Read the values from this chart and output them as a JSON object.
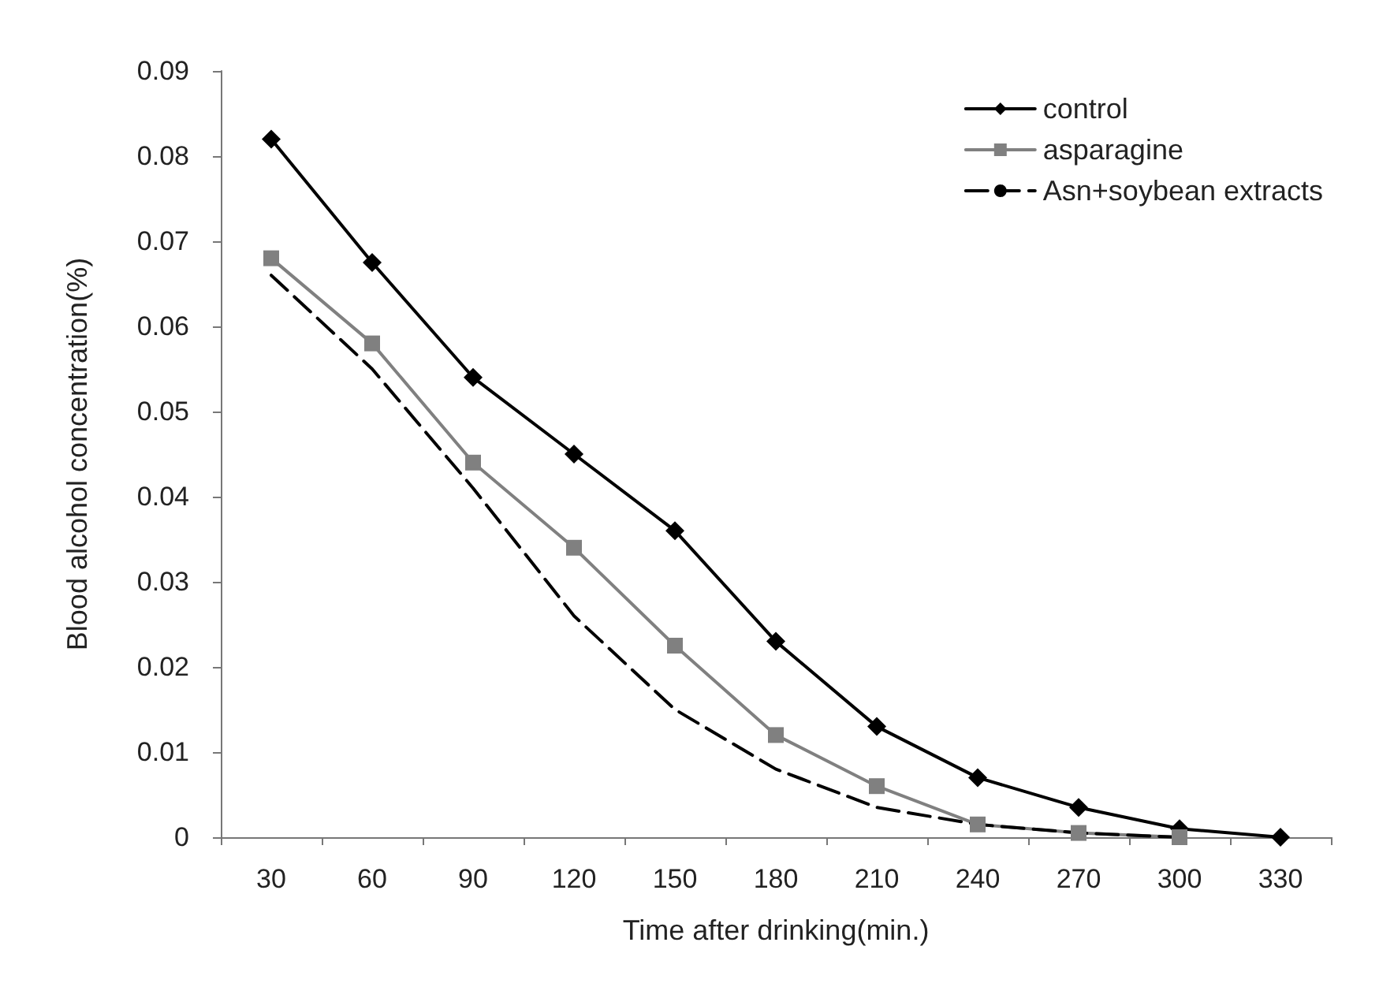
{
  "chart_data": {
    "type": "line",
    "xlabel": "Time after drinking(min.)",
    "ylabel": "Blood alcohol concentration(%)",
    "categories": [
      "30",
      "60",
      "90",
      "120",
      "150",
      "180",
      "210",
      "240",
      "270",
      "300",
      "330"
    ],
    "ylim": [
      0,
      0.09
    ],
    "yticks": [
      0,
      0.01,
      0.02,
      0.03,
      0.04,
      0.05,
      0.06,
      0.07,
      0.08,
      0.09
    ],
    "grid": false,
    "legend": "top right",
    "series": [
      {
        "name": "control",
        "color": "#000000",
        "marker": "diamond",
        "line_style": "solid",
        "values": [
          0.082,
          0.0675,
          0.054,
          0.045,
          0.036,
          0.023,
          0.013,
          0.007,
          0.0035,
          0.001,
          0
        ]
      },
      {
        "name": "asparagine",
        "color": "#808080",
        "marker": "square",
        "line_style": "solid",
        "values": [
          0.068,
          0.058,
          0.044,
          0.034,
          0.0225,
          0.012,
          0.006,
          0.0015,
          0.0005,
          0,
          null
        ]
      },
      {
        "name": "Asn+soybean extracts",
        "color": "#000000",
        "marker": "none",
        "line_style": "dashed",
        "values": [
          0.066,
          0.055,
          0.041,
          0.026,
          0.015,
          0.008,
          0.0035,
          0.0015,
          0.0005,
          0,
          null
        ]
      }
    ]
  }
}
